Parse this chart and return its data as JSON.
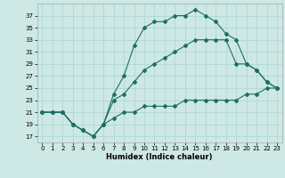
{
  "xlabel": "Humidex (Indice chaleur)",
  "bg_color": "#cde8e5",
  "line_color": "#1e6e64",
  "grid_color": "#b0d8d4",
  "line1_y": [
    21,
    21,
    21,
    19,
    18,
    17,
    19,
    24,
    27,
    32,
    35,
    36,
    36,
    37,
    37,
    38,
    37,
    36,
    34,
    33,
    29,
    28,
    26,
    25
  ],
  "line2_y": [
    21,
    21,
    21,
    19,
    18,
    17,
    19,
    23,
    24,
    26,
    28,
    29,
    30,
    31,
    32,
    33,
    33,
    33,
    33,
    29,
    29,
    28,
    26,
    25
  ],
  "line3_y": [
    21,
    21,
    21,
    19,
    18,
    17,
    19,
    20,
    21,
    21,
    22,
    22,
    22,
    22,
    23,
    23,
    23,
    23,
    23,
    23,
    24,
    24,
    25,
    25
  ],
  "xlim": [
    -0.5,
    23.5
  ],
  "ylim": [
    16,
    39
  ],
  "yticks": [
    17,
    19,
    21,
    23,
    25,
    27,
    29,
    31,
    33,
    35,
    37
  ],
  "xticks": [
    0,
    1,
    2,
    3,
    4,
    5,
    6,
    7,
    8,
    9,
    10,
    11,
    12,
    13,
    14,
    15,
    16,
    17,
    18,
    19,
    20,
    21,
    22,
    23
  ],
  "xlabel_fontsize": 6,
  "tick_fontsize": 5,
  "marker": "D",
  "markersize": 2,
  "linewidth": 0.8
}
